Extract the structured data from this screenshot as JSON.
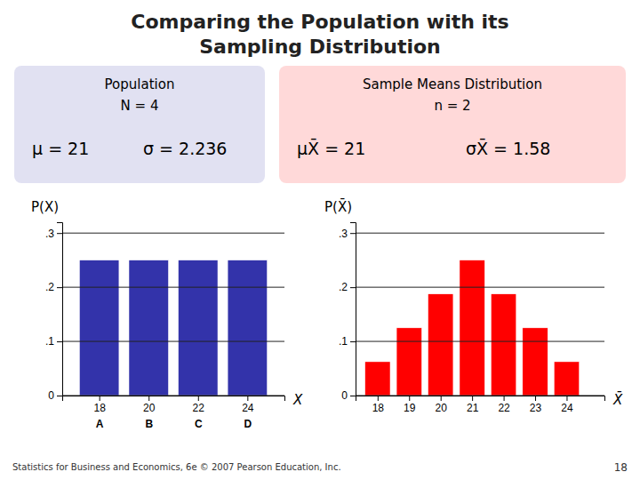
{
  "title": [
    "Comparing the Population with its",
    "Sampling Distribution"
  ],
  "chart_data": [
    {
      "type": "bar",
      "title": "Population",
      "subtitle": "N = 4",
      "annotations": [
        "μ = 21",
        "σ = 2.236"
      ],
      "x": [
        18,
        20,
        22,
        24
      ],
      "values": [
        0.25,
        0.25,
        0.25,
        0.25
      ],
      "color": "#3333aa",
      "xlim": [
        16.5,
        25.5
      ],
      "xticks": [
        18,
        20,
        22,
        24
      ],
      "x_tick_sublabels": [
        "A",
        "B",
        "C",
        "D"
      ],
      "ylim": [
        0,
        0.32
      ],
      "yticks": [
        0,
        {
          "value": 0.1,
          "label": ".1"
        },
        {
          "value": 0.2,
          "label": ".2"
        },
        {
          "value": 0.3,
          "label": ".3"
        }
      ],
      "grid": true,
      "xlabel": "X",
      "ylabel": "P(X)"
    },
    {
      "type": "bar",
      "title": "Sample Means Distribution",
      "subtitle": "n = 2",
      "annotations": [
        "μX̄ = 21",
        "σX̄ = 1.58"
      ],
      "x": [
        18,
        19,
        20,
        21,
        22,
        23,
        24
      ],
      "values": [
        0.0625,
        0.125,
        0.1875,
        0.25,
        0.1875,
        0.125,
        0.0625
      ],
      "color": "#ff0000",
      "xlim": [
        17.3,
        25.2
      ],
      "xticks": [
        18,
        19,
        20,
        21,
        22,
        23,
        24
      ],
      "ylim": [
        0,
        0.32
      ],
      "yticks": [
        0,
        {
          "value": 0.1,
          "label": ".1"
        },
        {
          "value": 0.2,
          "label": ".2"
        },
        {
          "value": 0.3,
          "label": ".3"
        }
      ],
      "grid": true,
      "xlabel": "X̄",
      "ylabel": "P(X̄)"
    }
  ],
  "footer": "Statistics for Business and Economics, 6e © 2007 Pearson Education, Inc.",
  "page_number": "18"
}
